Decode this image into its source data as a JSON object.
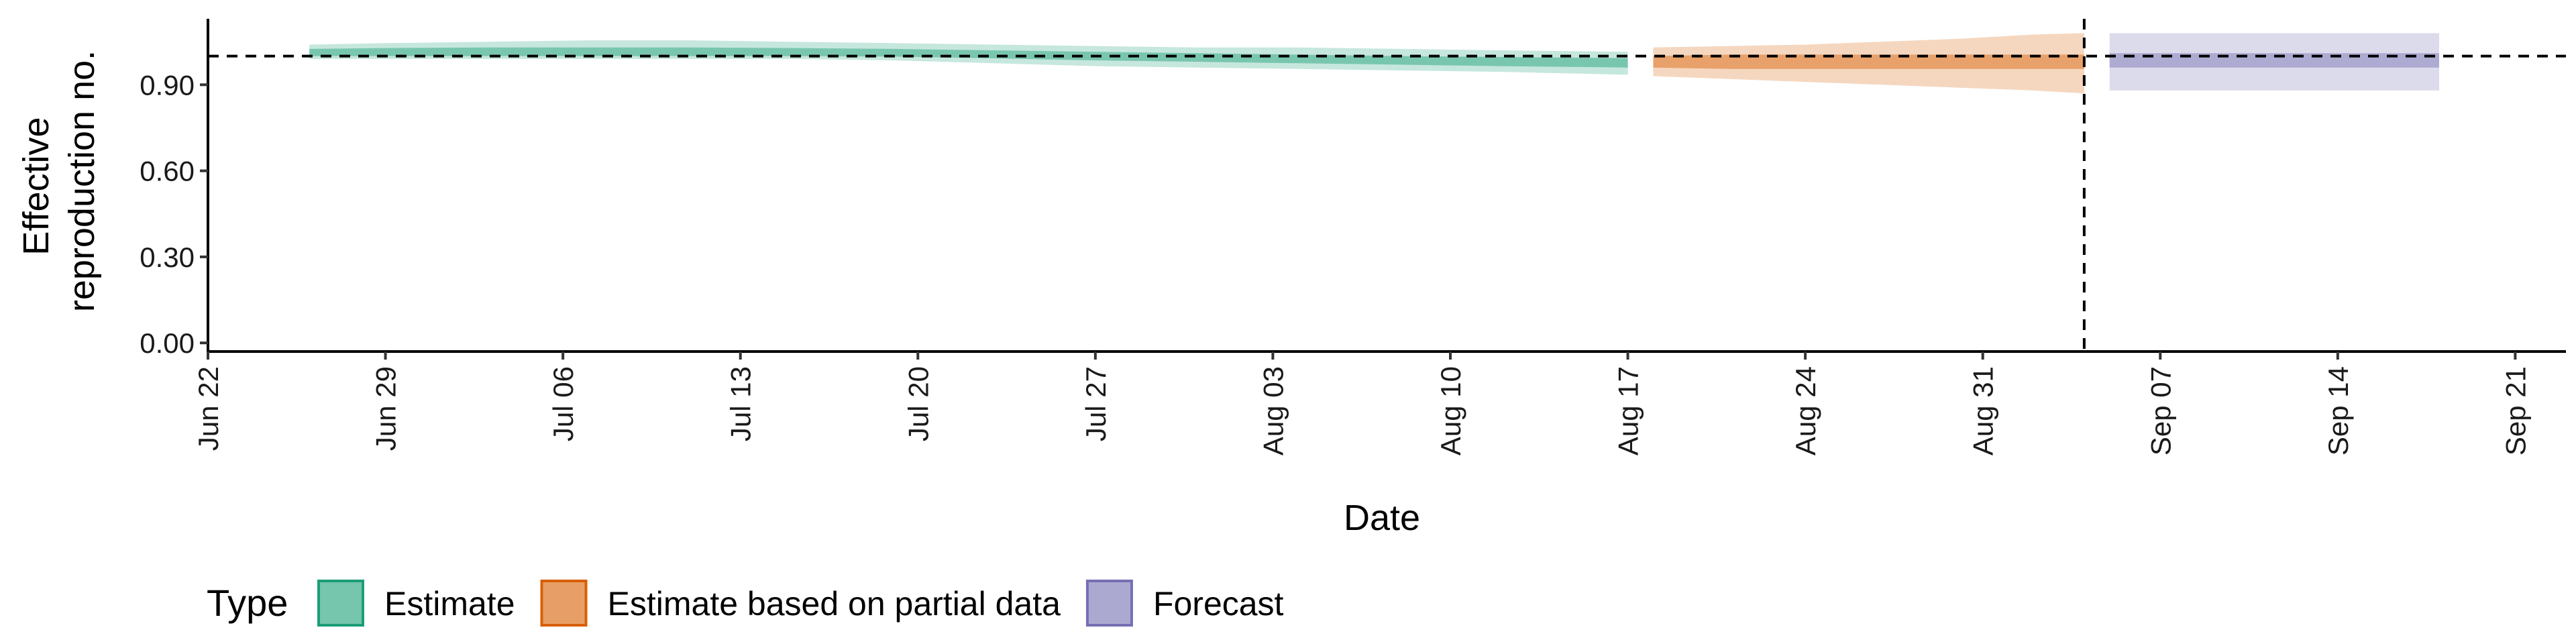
{
  "chart_data": {
    "type": "area",
    "xlabel": "Date",
    "ylabel": [
      "Effective",
      "reproduction no."
    ],
    "ylim": [
      -0.03,
      1.13
    ],
    "yticks": [
      0.0,
      0.3,
      0.6,
      0.9
    ],
    "ytick_labels": [
      "0.00",
      "0.30",
      "0.60",
      "0.90"
    ],
    "xlim": [
      "2020-06-22",
      "2020-09-23"
    ],
    "xticks": [
      {
        "date": "2020-06-22",
        "label": "Jun 22"
      },
      {
        "date": "2020-06-29",
        "label": "Jun 29"
      },
      {
        "date": "2020-07-06",
        "label": "Jul 06"
      },
      {
        "date": "2020-07-13",
        "label": "Jul 13"
      },
      {
        "date": "2020-07-20",
        "label": "Jul 20"
      },
      {
        "date": "2020-07-27",
        "label": "Jul 27"
      },
      {
        "date": "2020-08-03",
        "label": "Aug 03"
      },
      {
        "date": "2020-08-10",
        "label": "Aug 10"
      },
      {
        "date": "2020-08-17",
        "label": "Aug 17"
      },
      {
        "date": "2020-08-24",
        "label": "Aug 24"
      },
      {
        "date": "2020-08-31",
        "label": "Aug 31"
      },
      {
        "date": "2020-09-07",
        "label": "Sep 07"
      },
      {
        "date": "2020-09-14",
        "label": "Sep 14"
      },
      {
        "date": "2020-09-21",
        "label": "Sep 21"
      }
    ],
    "reference_hline": 1.0,
    "reference_vline": "2020-09-04",
    "grid": false,
    "legend": {
      "title": "Type",
      "position": "bottom",
      "entries": [
        "Estimate",
        "Estimate based on partial data",
        "Forecast"
      ]
    },
    "series": [
      {
        "name": "Estimate",
        "fill": "#1b9e77",
        "border": "#1b9e77",
        "x": [
          "2020-06-26",
          "2020-06-29",
          "2020-07-03",
          "2020-07-07",
          "2020-07-11",
          "2020-07-15",
          "2020-07-19",
          "2020-07-23",
          "2020-07-27",
          "2020-07-31",
          "2020-08-04",
          "2020-08-08",
          "2020-08-12",
          "2020-08-17"
        ],
        "outer_lo": [
          0.99,
          0.99,
          0.99,
          0.99,
          0.99,
          0.99,
          0.985,
          0.975,
          0.965,
          0.96,
          0.955,
          0.95,
          0.945,
          0.935
        ],
        "outer_hi": [
          1.04,
          1.045,
          1.05,
          1.055,
          1.055,
          1.05,
          1.045,
          1.04,
          1.035,
          1.03,
          1.03,
          1.025,
          1.02,
          1.015
        ],
        "inner_lo": [
          1.0,
          1.0,
          1.0,
          1.0,
          1.0,
          1.0,
          0.998,
          0.992,
          0.985,
          0.98,
          0.975,
          0.97,
          0.965,
          0.96
        ],
        "inner_hi": [
          1.025,
          1.028,
          1.03,
          1.03,
          1.03,
          1.028,
          1.025,
          1.02,
          1.015,
          1.01,
          1.005,
          1.0,
          0.997,
          0.993
        ]
      },
      {
        "name": "Estimate based on partial data",
        "fill": "#d95f02",
        "border": "#d95f02",
        "x": [
          "2020-08-18",
          "2020-08-21",
          "2020-08-24",
          "2020-08-27",
          "2020-08-30",
          "2020-09-02",
          "2020-09-04"
        ],
        "outer_lo": [
          0.93,
          0.92,
          0.91,
          0.9,
          0.89,
          0.88,
          0.87
        ],
        "outer_hi": [
          1.03,
          1.035,
          1.04,
          1.05,
          1.06,
          1.075,
          1.08
        ],
        "inner_lo": [
          0.96,
          0.955,
          0.955,
          0.955,
          0.955,
          0.955,
          0.955
        ],
        "inner_hi": [
          1.0,
          1.005,
          1.005,
          1.005,
          1.005,
          1.005,
          1.005
        ]
      },
      {
        "name": "Forecast",
        "fill": "#7570b3",
        "border": "#7570b3",
        "x": [
          "2020-09-05",
          "2020-09-18"
        ],
        "outer_lo": [
          0.88,
          0.88
        ],
        "outer_hi": [
          1.08,
          1.08
        ],
        "inner_lo": [
          0.96,
          0.96
        ],
        "inner_hi": [
          1.01,
          1.01
        ]
      }
    ]
  }
}
